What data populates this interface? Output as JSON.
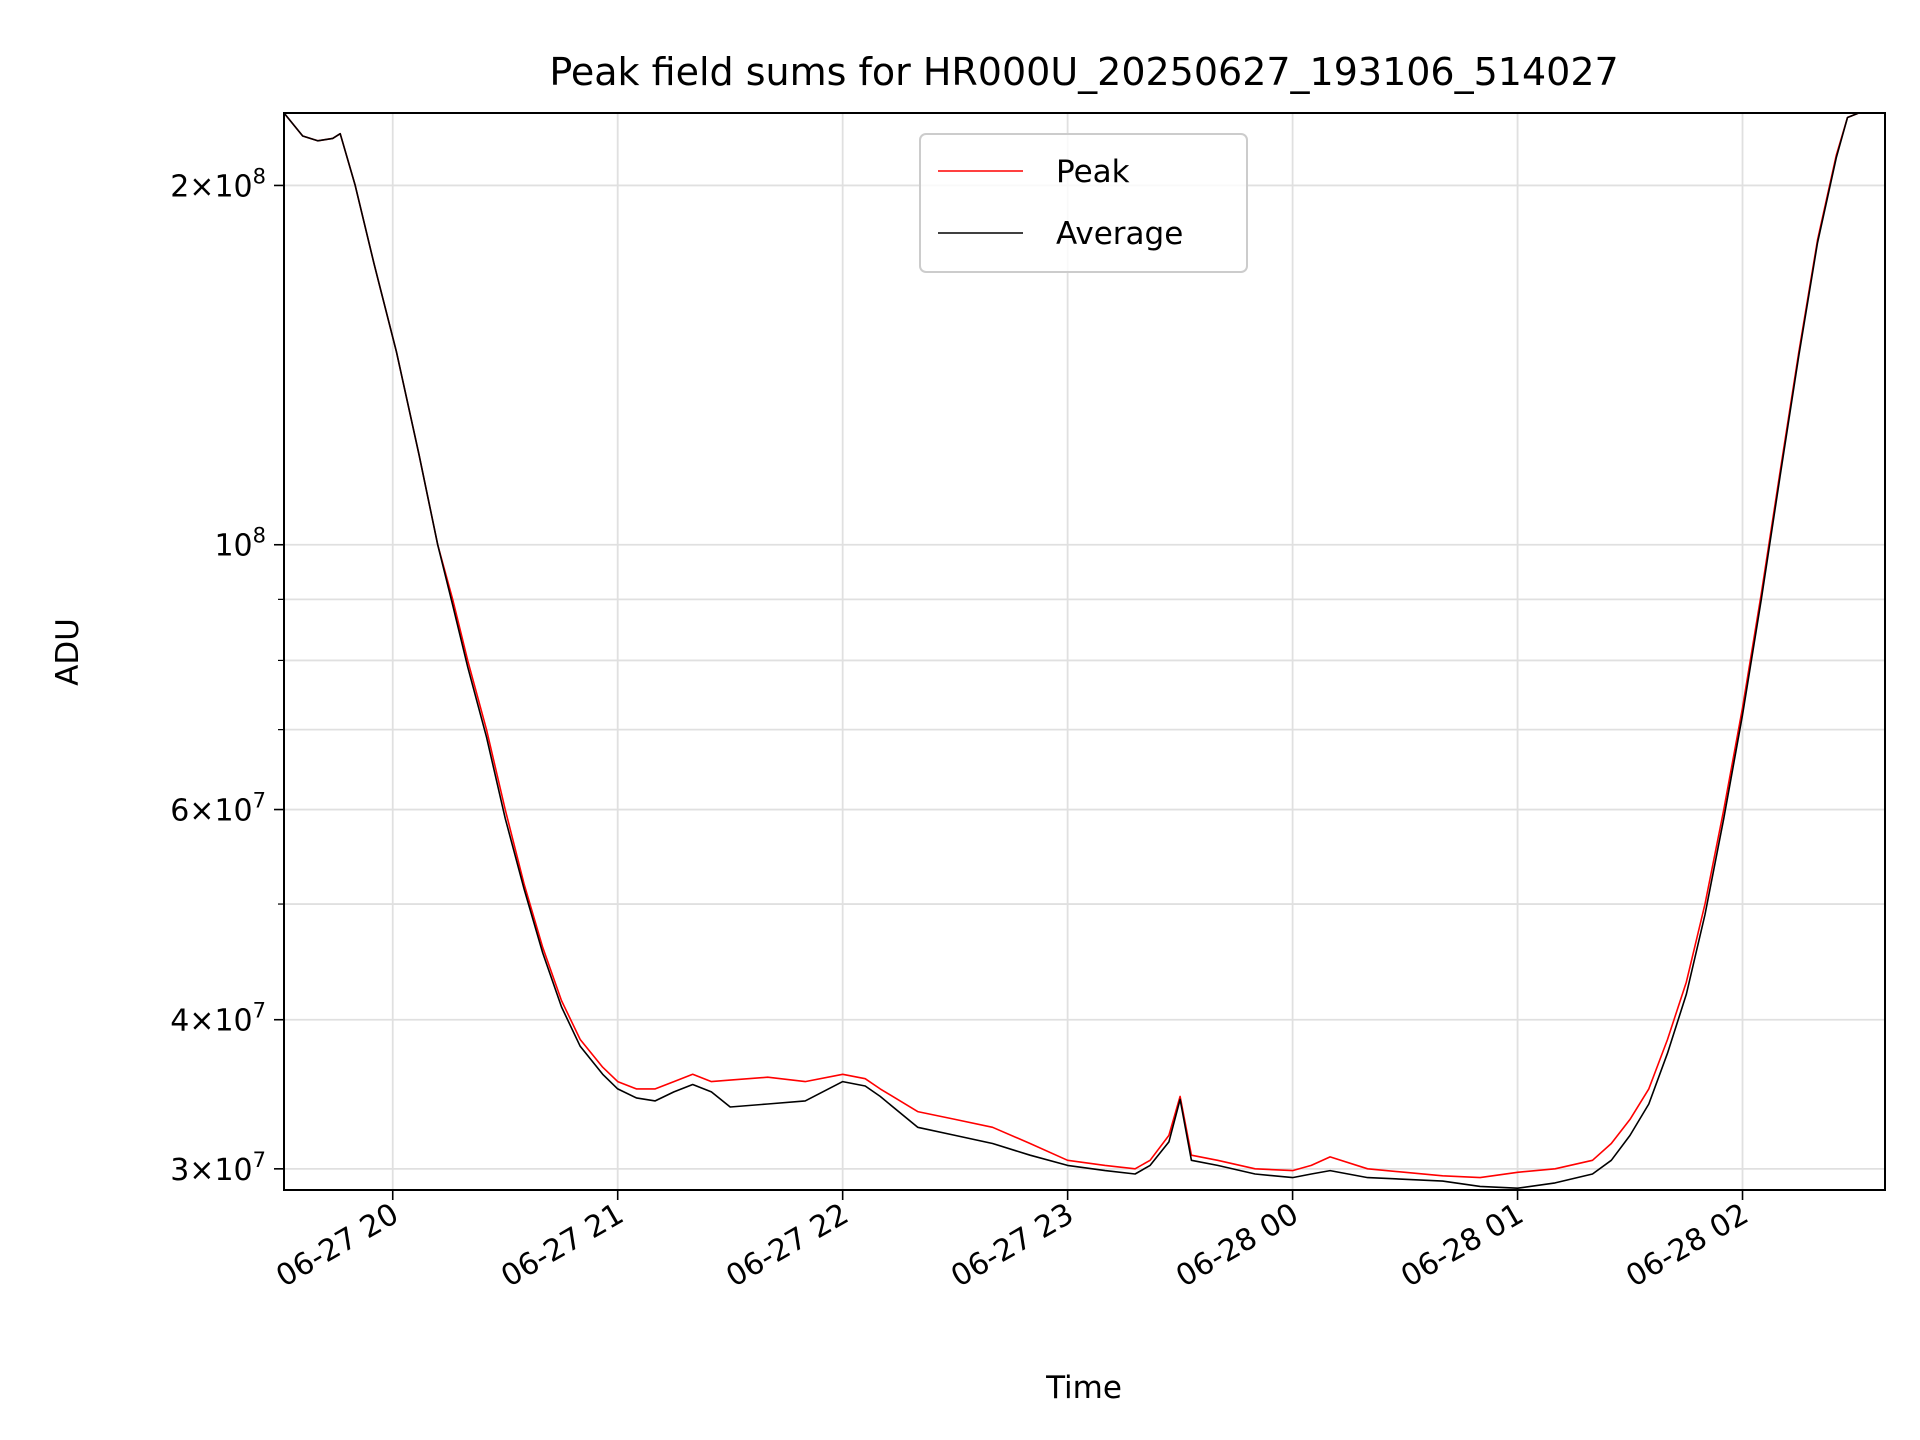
{
  "chart_data": {
    "type": "line",
    "title": "Peak field sums for HR000U_20250627_193106_514027",
    "xlabel": "Time",
    "ylabel": "ADU",
    "yscale": "log",
    "ylim": [
      28800000,
      230000000
    ],
    "xlim": [
      "2025-06-27 19:31",
      "2025-06-28 02:38"
    ],
    "grid": true,
    "legend_position": "top-center",
    "x_ticks": [
      "2025-06-27 20:00",
      "2025-06-27 21:00",
      "2025-06-27 22:00",
      "2025-06-27 23:00",
      "2025-06-28 00:00",
      "2025-06-28 01:00",
      "2025-06-28 02:00"
    ],
    "x_tick_labels": [
      "06-27 20",
      "06-27 21",
      "06-27 22",
      "06-27 23",
      "06-28 00",
      "06-28 01",
      "06-28 02"
    ],
    "y_ticks": [
      {
        "value": 200000000,
        "mantissa": "2",
        "exponent": "8"
      },
      {
        "value": 100000000,
        "mantissa": "",
        "exponent": "8"
      },
      {
        "value": 60000000,
        "mantissa": "6",
        "exponent": "7"
      },
      {
        "value": 40000000,
        "mantissa": "4",
        "exponent": "7"
      },
      {
        "value": 30000000,
        "mantissa": "3",
        "exponent": "7"
      }
    ],
    "y_minor_ticks": [
      50000000,
      70000000,
      80000000,
      90000000
    ],
    "series": [
      {
        "name": "Peak",
        "color": "#ff0000",
        "x": [
          "2025-06-27 19:31",
          "2025-06-27 19:36",
          "2025-06-27 19:40",
          "2025-06-27 19:44",
          "2025-06-27 19:46",
          "2025-06-27 19:50",
          "2025-06-27 19:55",
          "2025-06-27 20:01",
          "2025-06-27 20:07",
          "2025-06-27 20:12",
          "2025-06-27 20:16",
          "2025-06-27 20:20",
          "2025-06-27 20:25",
          "2025-06-27 20:30",
          "2025-06-27 20:35",
          "2025-06-27 20:40",
          "2025-06-27 20:45",
          "2025-06-27 20:50",
          "2025-06-27 20:56",
          "2025-06-27 21:00",
          "2025-06-27 21:05",
          "2025-06-27 21:10",
          "2025-06-27 21:15",
          "2025-06-27 21:20",
          "2025-06-27 21:25",
          "2025-06-27 21:30",
          "2025-06-27 21:40",
          "2025-06-27 21:50",
          "2025-06-27 22:00",
          "2025-06-27 22:06",
          "2025-06-27 22:10",
          "2025-06-27 22:20",
          "2025-06-27 22:30",
          "2025-06-27 22:40",
          "2025-06-27 22:50",
          "2025-06-27 23:00",
          "2025-06-27 23:10",
          "2025-06-27 23:18",
          "2025-06-27 23:22",
          "2025-06-27 23:27",
          "2025-06-27 23:30",
          "2025-06-27 23:33",
          "2025-06-27 23:40",
          "2025-06-27 23:50",
          "2025-06-28 00:00",
          "2025-06-28 00:05",
          "2025-06-28 00:10",
          "2025-06-28 00:20",
          "2025-06-28 00:30",
          "2025-06-28 00:40",
          "2025-06-28 00:50",
          "2025-06-28 01:00",
          "2025-06-28 01:10",
          "2025-06-28 01:20",
          "2025-06-28 01:25",
          "2025-06-28 01:30",
          "2025-06-28 01:35",
          "2025-06-28 01:40",
          "2025-06-28 01:45",
          "2025-06-28 01:50",
          "2025-06-28 01:55",
          "2025-06-28 02:00",
          "2025-06-28 02:05",
          "2025-06-28 02:10",
          "2025-06-28 02:15",
          "2025-06-28 02:20",
          "2025-06-28 02:25",
          "2025-06-28 02:28",
          "2025-06-28 02:31",
          "2025-06-28 02:34"
        ],
        "values": [
          230000000,
          220000000,
          218000000,
          219000000,
          221000000,
          200000000,
          172000000,
          145000000,
          119000000,
          100000000,
          90000000,
          80000000,
          70000000,
          60000000,
          52000000,
          46000000,
          41500000,
          38500000,
          36500000,
          35500000,
          35000000,
          35000000,
          35500000,
          36000000,
          35500000,
          35600000,
          35800000,
          35500000,
          36000000,
          35700000,
          35000000,
          33500000,
          33000000,
          32500000,
          31500000,
          30500000,
          30200000,
          30000000,
          30500000,
          32000000,
          34500000,
          30800000,
          30500000,
          30000000,
          29900000,
          30200000,
          30700000,
          30000000,
          29800000,
          29600000,
          29500000,
          29800000,
          30000000,
          30500000,
          31500000,
          33000000,
          35000000,
          38500000,
          43000000,
          50000000,
          60000000,
          73000000,
          91000000,
          115000000,
          145000000,
          180000000,
          212000000,
          228000000,
          230000000,
          230000000
        ]
      },
      {
        "name": "Average",
        "color": "#000000",
        "x": [
          "2025-06-27 19:31",
          "2025-06-27 19:36",
          "2025-06-27 19:40",
          "2025-06-27 19:44",
          "2025-06-27 19:46",
          "2025-06-27 19:50",
          "2025-06-27 19:55",
          "2025-06-27 20:01",
          "2025-06-27 20:07",
          "2025-06-27 20:12",
          "2025-06-27 20:16",
          "2025-06-27 20:20",
          "2025-06-27 20:25",
          "2025-06-27 20:30",
          "2025-06-27 20:35",
          "2025-06-27 20:40",
          "2025-06-27 20:45",
          "2025-06-27 20:50",
          "2025-06-27 20:56",
          "2025-06-27 21:00",
          "2025-06-27 21:05",
          "2025-06-27 21:10",
          "2025-06-27 21:15",
          "2025-06-27 21:20",
          "2025-06-27 21:25",
          "2025-06-27 21:30",
          "2025-06-27 21:40",
          "2025-06-27 21:50",
          "2025-06-27 22:00",
          "2025-06-27 22:06",
          "2025-06-27 22:10",
          "2025-06-27 22:20",
          "2025-06-27 22:30",
          "2025-06-27 22:40",
          "2025-06-27 22:50",
          "2025-06-27 23:00",
          "2025-06-27 23:10",
          "2025-06-27 23:18",
          "2025-06-27 23:22",
          "2025-06-27 23:27",
          "2025-06-27 23:30",
          "2025-06-27 23:33",
          "2025-06-27 23:40",
          "2025-06-27 23:50",
          "2025-06-28 00:00",
          "2025-06-28 00:05",
          "2025-06-28 00:10",
          "2025-06-28 00:20",
          "2025-06-28 00:30",
          "2025-06-28 00:40",
          "2025-06-28 00:50",
          "2025-06-28 01:00",
          "2025-06-28 01:10",
          "2025-06-28 01:20",
          "2025-06-28 01:25",
          "2025-06-28 01:30",
          "2025-06-28 01:35",
          "2025-06-28 01:40",
          "2025-06-28 01:45",
          "2025-06-28 01:50",
          "2025-06-28 01:55",
          "2025-06-28 02:00",
          "2025-06-28 02:05",
          "2025-06-28 02:10",
          "2025-06-28 02:15",
          "2025-06-28 02:20",
          "2025-06-28 02:25",
          "2025-06-28 02:28",
          "2025-06-28 02:31",
          "2025-06-28 02:34"
        ],
        "values": [
          230000000,
          220000000,
          218000000,
          219000000,
          221000000,
          200000000,
          172000000,
          145000000,
          119000000,
          100000000,
          89000000,
          79000000,
          69000000,
          59000000,
          51500000,
          45500000,
          41000000,
          38000000,
          36000000,
          35000000,
          34400000,
          34200000,
          34800000,
          35300000,
          34800000,
          33800000,
          34000000,
          34200000,
          35500000,
          35200000,
          34500000,
          32500000,
          32000000,
          31500000,
          30800000,
          30200000,
          29900000,
          29700000,
          30200000,
          31600000,
          34300000,
          30500000,
          30200000,
          29700000,
          29500000,
          29700000,
          29900000,
          29500000,
          29400000,
          29300000,
          29000000,
          28900000,
          29200000,
          29700000,
          30500000,
          32000000,
          34000000,
          37500000,
          42000000,
          49000000,
          59000000,
          72000000,
          90000000,
          114000000,
          144000000,
          179000000,
          211000000,
          228000000,
          230000000,
          230000000
        ]
      }
    ]
  }
}
